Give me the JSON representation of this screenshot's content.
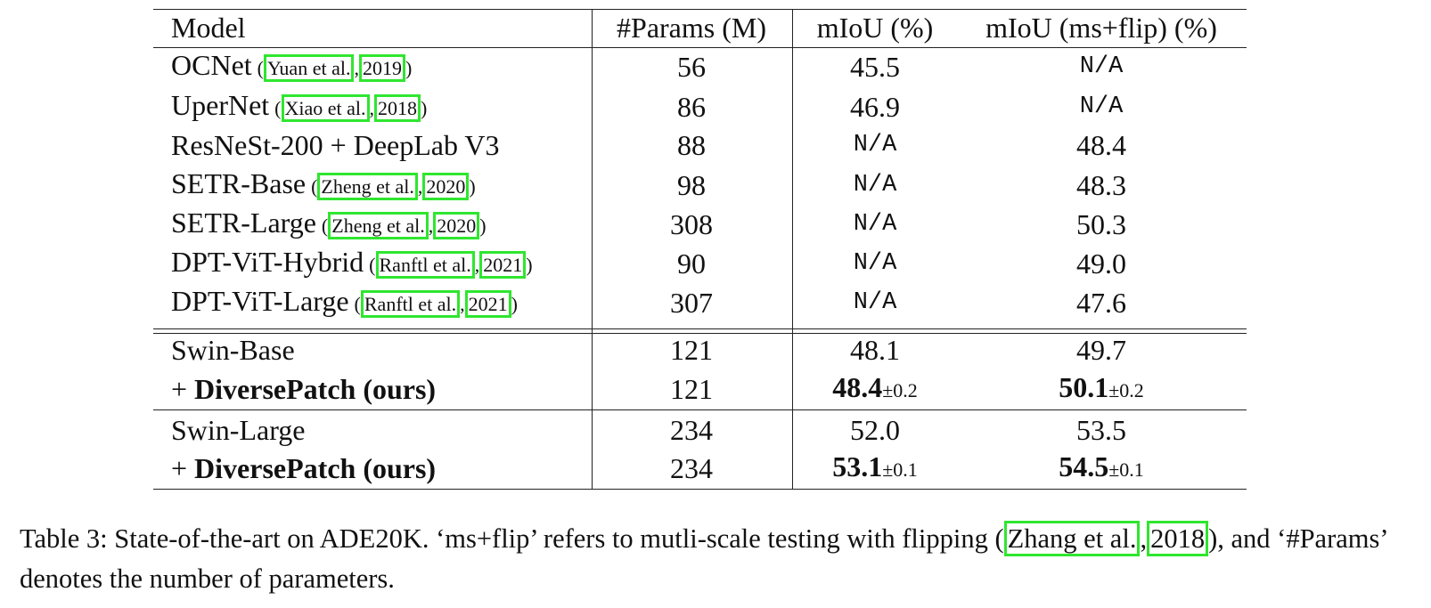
{
  "table": {
    "header": [
      "Model",
      "#Params (M)",
      "mIoU (%)",
      "mIoU (ms+flip) (%)"
    ],
    "rows": [
      {
        "model": "OCNet",
        "cite": [
          "(",
          "Yuan et al.",
          ",",
          "2019",
          ")"
        ],
        "params": "56",
        "miou": "45.5",
        "ms": "N/A"
      },
      {
        "model": "UperNet",
        "cite": [
          "(",
          "Xiao et al.",
          ",",
          "2018",
          ")"
        ],
        "params": "86",
        "miou": "46.9",
        "ms": "N/A"
      },
      {
        "model": "ResNeSt-200 + DeepLab V3",
        "params": "88",
        "miou": "N/A",
        "ms": "48.4"
      },
      {
        "model": "SETR-Base",
        "cite": [
          "(",
          "Zheng et al.",
          ",",
          "2020",
          ")"
        ],
        "params": "98",
        "miou": "N/A",
        "ms": "48.3"
      },
      {
        "model": "SETR-Large",
        "cite": [
          "(",
          "Zheng et al.",
          ",",
          "2020",
          ")"
        ],
        "params": "308",
        "miou": "N/A",
        "ms": "50.3"
      },
      {
        "model": "DPT-ViT-Hybrid",
        "cite": [
          "(",
          "Ranftl et al.",
          ",",
          "2021",
          ")"
        ],
        "params": "90",
        "miou": "N/A",
        "ms": "49.0"
      },
      {
        "model": "DPT-ViT-Large",
        "cite": [
          "(",
          "Ranftl et al.",
          ",",
          "2021",
          ")"
        ],
        "params": "307",
        "miou": "N/A",
        "ms": "47.6"
      },
      {
        "model": "Swin-Base",
        "params": "121",
        "miou": "48.1",
        "ms": "49.7"
      },
      {
        "prefix": "+ ",
        "model": "DiversePatch (ours)",
        "bold": true,
        "params": "121",
        "miou": "48.4",
        "miou_pm": "±0.2",
        "ms": "50.1",
        "ms_pm": "±0.2"
      },
      {
        "model": "Swin-Large",
        "params": "234",
        "miou": "52.0",
        "ms": "53.5"
      },
      {
        "prefix": "+ ",
        "model": "DiversePatch (ours)",
        "bold": true,
        "params": "234",
        "miou": "53.1",
        "miou_pm": "±0.1",
        "ms": "54.5",
        "ms_pm": "±0.1"
      }
    ]
  },
  "caption": {
    "text1": "Table 3: State-of-the-art on ADE20K. ‘ms+flip’ refers to mutli-scale testing with flipping ",
    "cite": [
      "(",
      "Zhang et al.",
      ",",
      "2018",
      ")"
    ],
    "text2": ", and ‘#Params’ denotes the number of parameters."
  }
}
